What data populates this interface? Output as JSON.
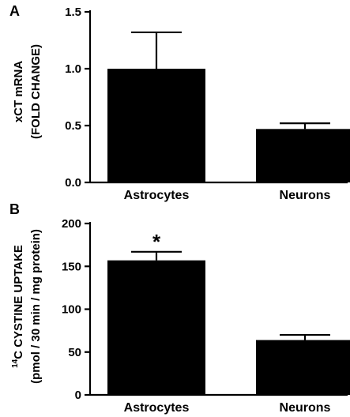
{
  "chart_data": [
    {
      "panel": "A",
      "type": "bar",
      "categories": [
        "Astrocytes",
        "Neurons"
      ],
      "values": [
        1.0,
        0.47
      ],
      "errors": [
        0.32,
        0.05
      ],
      "ylabel_lines": [
        "xCT mRNA",
        "(FOLD CHANGE)"
      ],
      "ylim": [
        0,
        1.5
      ],
      "yticks": [
        0,
        0.5,
        1.0,
        1.5
      ],
      "ytick_labels": [
        "0.0",
        "0.5",
        "1.0",
        "1.5"
      ],
      "bar_color": "#000000",
      "annotations": []
    },
    {
      "panel": "B",
      "type": "bar",
      "categories": [
        "Astrocytes",
        "Neurons"
      ],
      "values": [
        157,
        64
      ],
      "errors": [
        10,
        6
      ],
      "ylabel_sup": "14",
      "ylabel_line1_rest": "C CYSTINE UPTAKE",
      "ylabel_line2": "(pmol / 30 min / mg protein)",
      "ylim": [
        0,
        200
      ],
      "yticks": [
        0,
        50,
        100,
        150,
        200
      ],
      "ytick_labels": [
        "0",
        "50",
        "100",
        "150",
        "200"
      ],
      "bar_color": "#000000",
      "annotations": [
        {
          "category": "Astrocytes",
          "text": "*"
        }
      ]
    }
  ]
}
